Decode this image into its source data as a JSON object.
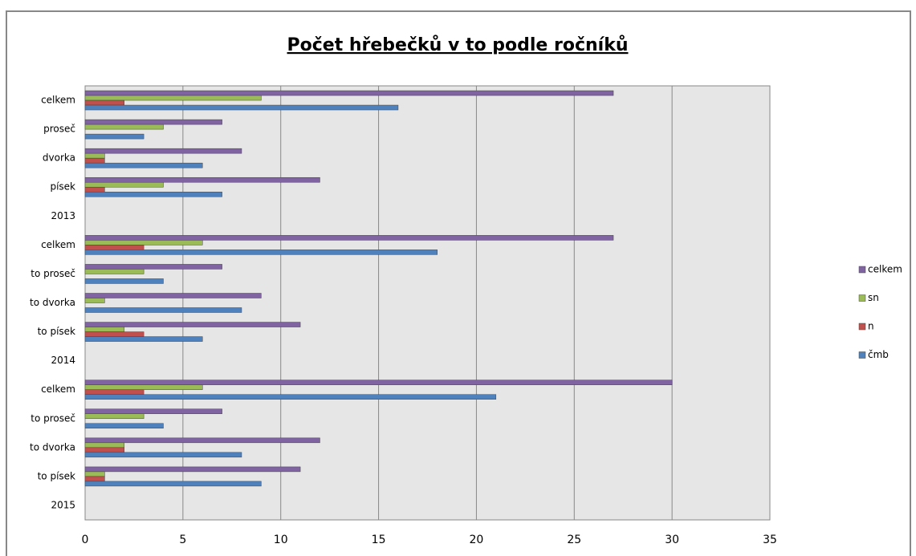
{
  "chart_data": {
    "type": "bar",
    "orientation": "horizontal",
    "title": "Počet hřebečků v to podle ročníků",
    "categories": [
      "celkem",
      "proseč",
      "dvorka",
      "písek",
      "2013",
      "celkem",
      "to proseč",
      "to dvorka",
      "to písek",
      "2014",
      "celkem",
      "to proseč",
      "to dvorka",
      "to písek",
      "2015"
    ],
    "series": [
      {
        "name": "celkem",
        "color": "#8064a2",
        "values": [
          27,
          7,
          8,
          12,
          null,
          27,
          7,
          9,
          11,
          null,
          30,
          7,
          12,
          11,
          null
        ]
      },
      {
        "name": "sn",
        "color": "#9bbb59",
        "values": [
          9,
          4,
          1,
          4,
          null,
          6,
          3,
          1,
          2,
          null,
          6,
          3,
          2,
          1,
          null
        ]
      },
      {
        "name": "n",
        "color": "#c0504d",
        "values": [
          2,
          0,
          1,
          1,
          null,
          3,
          0,
          0,
          3,
          null,
          3,
          0,
          2,
          1,
          null
        ]
      },
      {
        "name": "čmb",
        "color": "#4f81bd",
        "values": [
          16,
          3,
          6,
          7,
          null,
          18,
          4,
          8,
          6,
          null,
          21,
          4,
          8,
          9,
          null
        ]
      }
    ],
    "xlim": [
      0,
      35
    ],
    "xticks": [
      0,
      5,
      10,
      15,
      20,
      25,
      30,
      35
    ],
    "grid": true,
    "legend": "right"
  }
}
